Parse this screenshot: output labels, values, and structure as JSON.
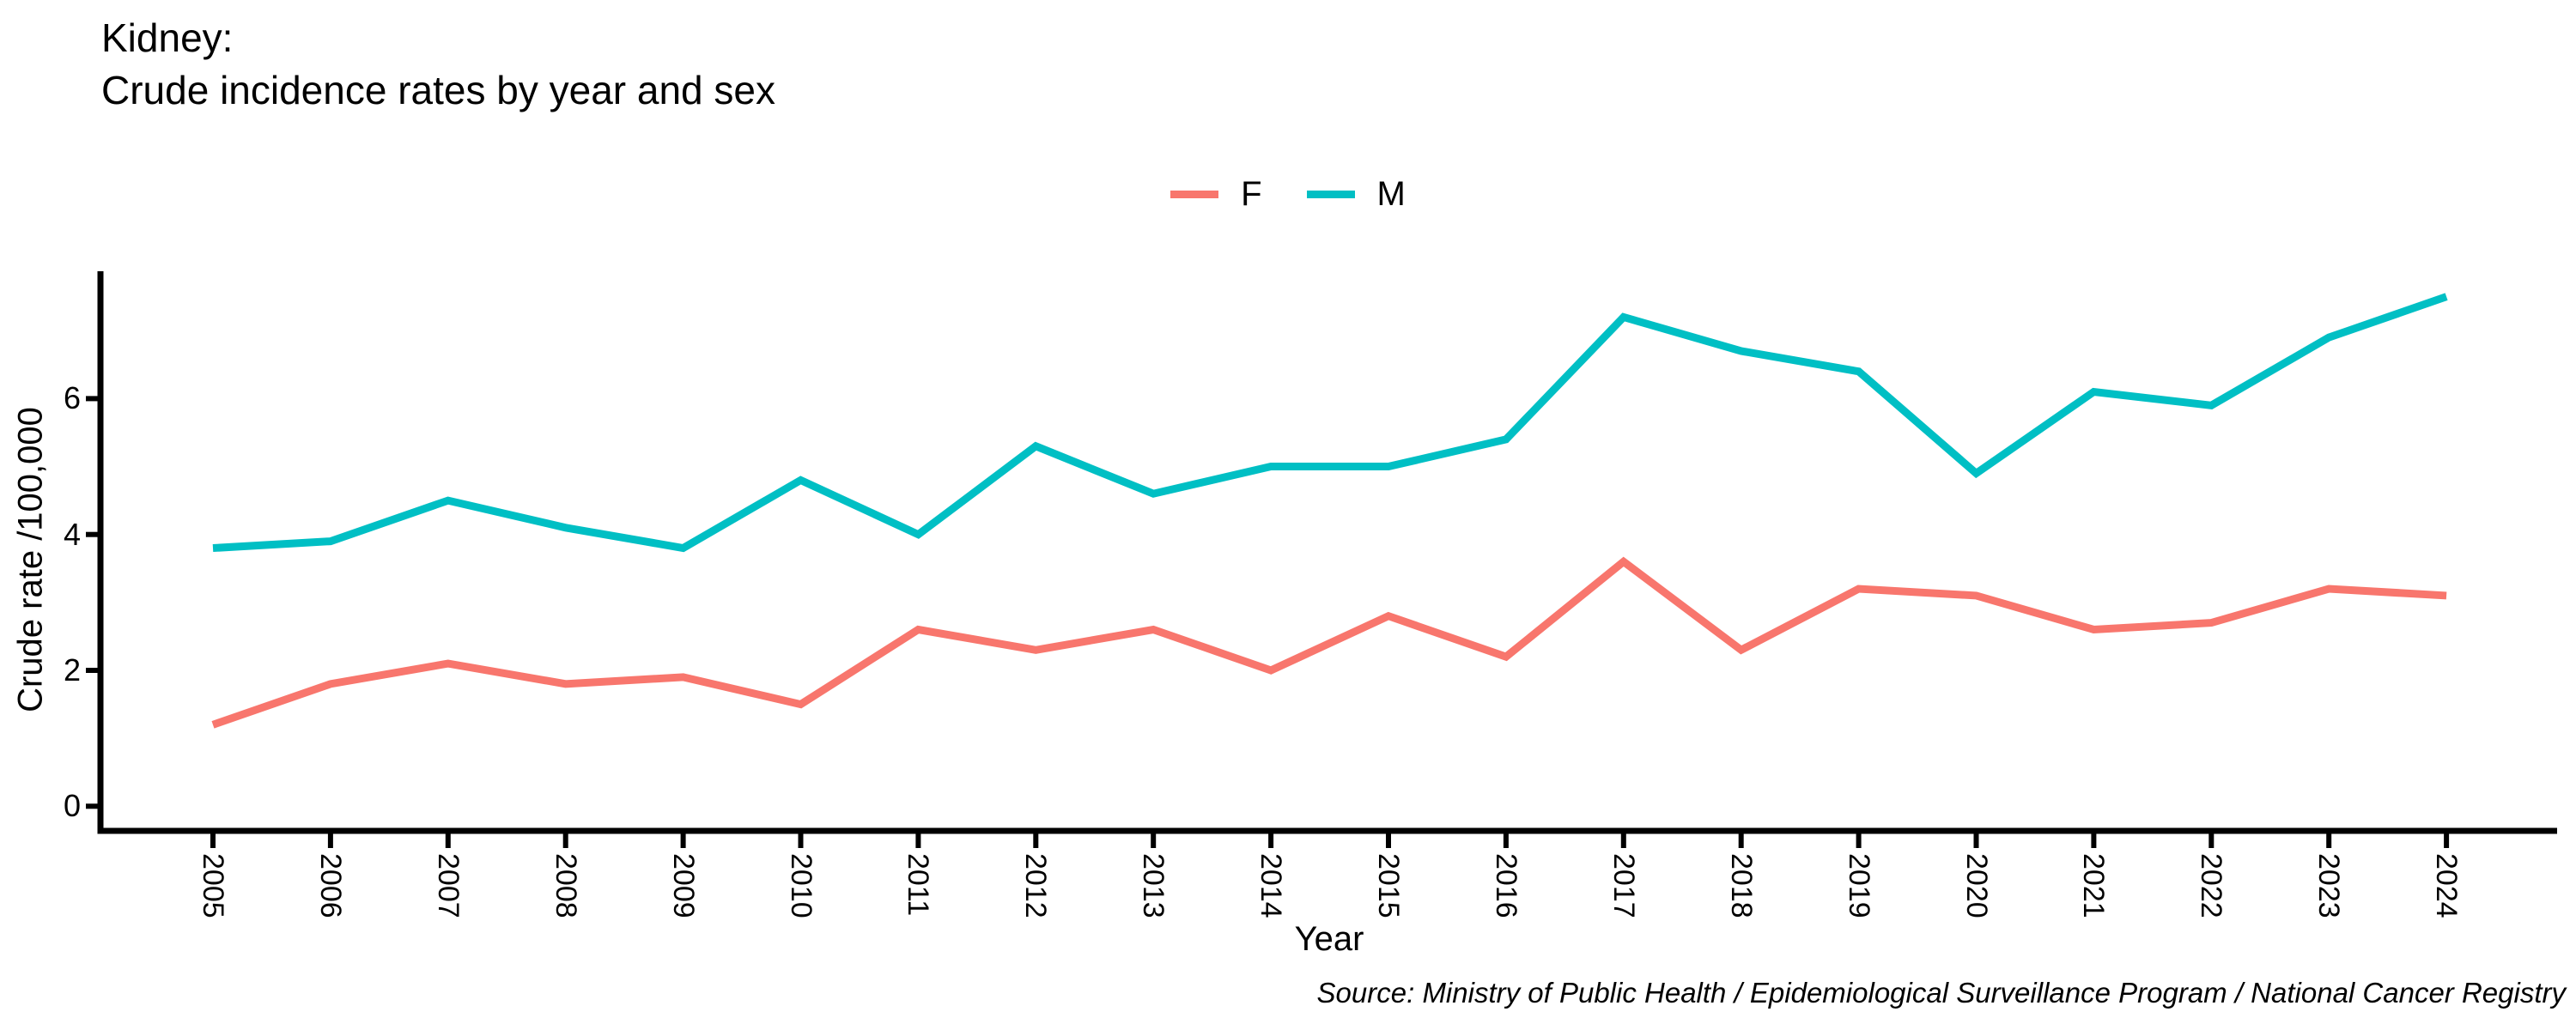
{
  "header": {
    "title_line1": "Kidney:",
    "title_line2": "Crude incidence rates by year and sex"
  },
  "legend": {
    "items": [
      {
        "label": "F",
        "color": "#F8766D"
      },
      {
        "label": "M",
        "color": "#00BFC4"
      }
    ]
  },
  "axes": {
    "y_title": "Crude rate /100,000",
    "x_title": "Year",
    "y_ticks": [
      0,
      2,
      4,
      6
    ]
  },
  "source_note": "Source: Ministry of Public Health / Epidemiological Surveillance Program / National Cancer Registry",
  "chart_data": {
    "type": "line",
    "title": "Kidney: Crude incidence rates by year and sex",
    "x": [
      2005,
      2006,
      2007,
      2008,
      2009,
      2010,
      2011,
      2012,
      2013,
      2014,
      2015,
      2016,
      2017,
      2018,
      2019,
      2020,
      2021,
      2022,
      2023,
      2024
    ],
    "series": [
      {
        "name": "F",
        "color": "#F8766D",
        "values": [
          1.2,
          1.8,
          2.1,
          1.8,
          1.9,
          1.5,
          2.6,
          2.3,
          2.6,
          2.0,
          2.8,
          2.2,
          3.6,
          2.3,
          3.2,
          3.1,
          2.6,
          2.7,
          3.2,
          3.1
        ]
      },
      {
        "name": "M",
        "color": "#00BFC4",
        "values": [
          3.8,
          3.9,
          4.5,
          4.1,
          3.8,
          4.8,
          4.0,
          5.3,
          4.6,
          5.0,
          5.0,
          5.4,
          7.2,
          6.7,
          6.4,
          4.9,
          6.1,
          5.9,
          6.9,
          7.5
        ]
      }
    ],
    "xlabel": "Year",
    "ylabel": "Crude rate /100,000",
    "ylim": [
      0,
      7.9
    ],
    "yticks": [
      0,
      2,
      4,
      6
    ],
    "grid": false,
    "legend_position": "top-center",
    "axis_color": "#000000",
    "background": "#ffffff"
  }
}
